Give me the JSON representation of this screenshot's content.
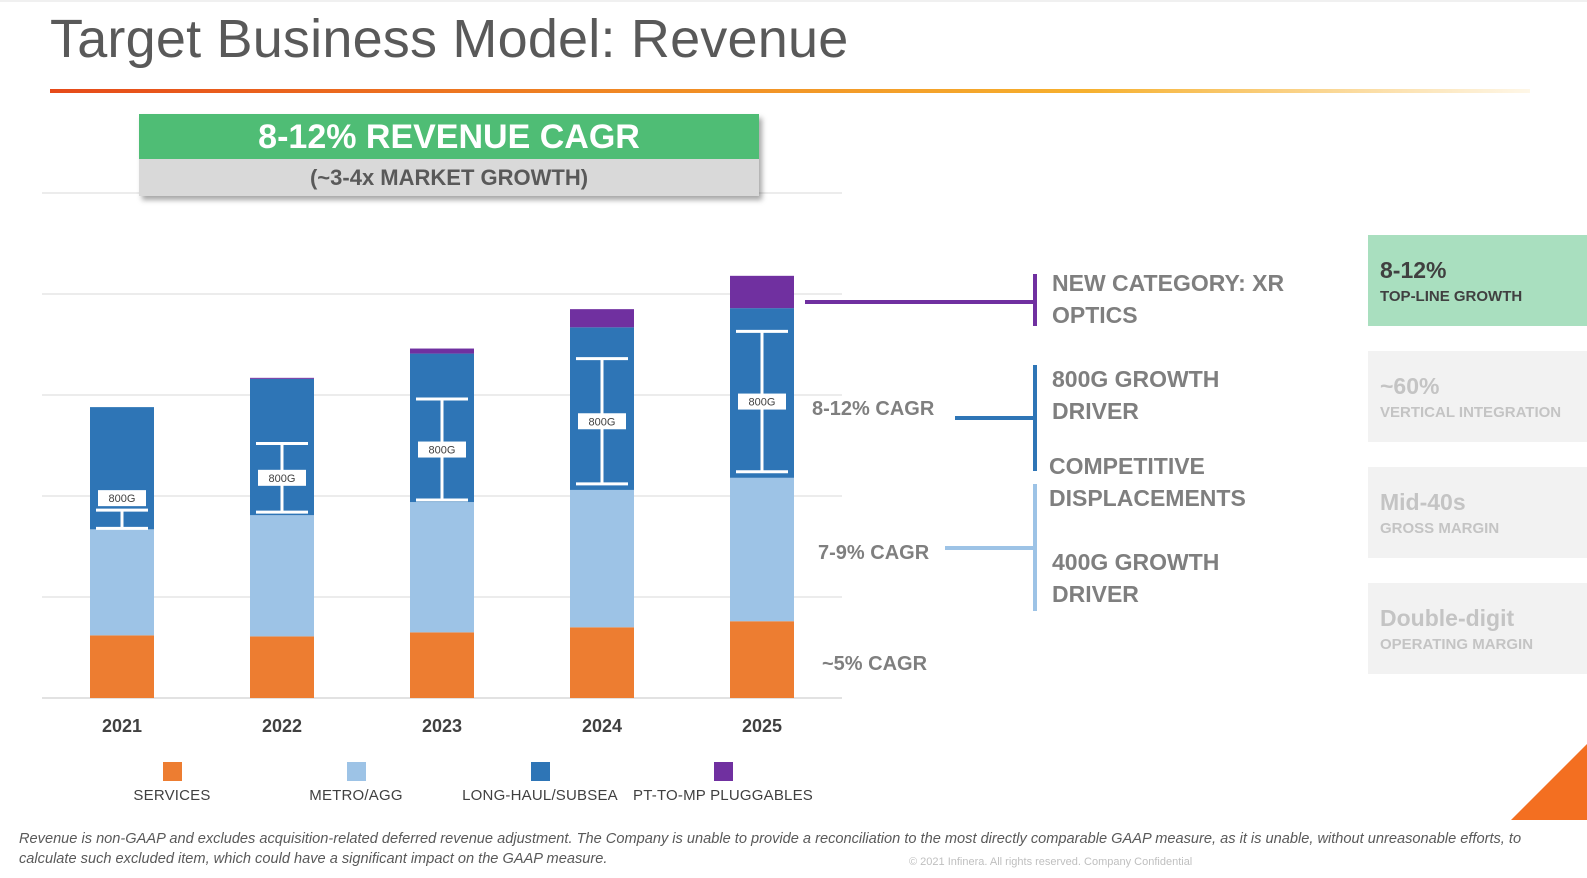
{
  "title": "Target Business Model: Revenue",
  "headline": {
    "cagr": "8-12% REVENUE CAGR",
    "market": "(~3-4x MARKET GROWTH)"
  },
  "colors": {
    "services": "#ed7d31",
    "metro": "#9dc3e6",
    "longhaul": "#2e75b6",
    "pluggables": "#7030a0",
    "green": "#4fbd75",
    "greenCard": "#a9dfbf"
  },
  "chart_data": {
    "type": "bar",
    "stacked": true,
    "categories": [
      "2021",
      "2022",
      "2023",
      "2024",
      "2025"
    ],
    "series": [
      {
        "name": "SERVICES",
        "color": "#ed7d31",
        "values": [
          62,
          61,
          65,
          70,
          76
        ]
      },
      {
        "name": "METRO/AGG",
        "color": "#9dc3e6",
        "values": [
          105,
          120,
          129,
          136,
          142
        ]
      },
      {
        "name": "LONG-HAUL/SUBSEA",
        "color": "#2e75b6",
        "values": [
          121,
          135,
          147,
          161,
          168
        ]
      },
      {
        "name": "PT-TO-MP PLUGGABLES",
        "color": "#7030a0",
        "values": [
          0,
          1,
          5,
          18,
          32
        ]
      }
    ],
    "tags": [
      "800G",
      "800G",
      "800G",
      "800G",
      "800G"
    ],
    "tag_ranges": [
      [
        168,
        186
      ],
      [
        184,
        252
      ],
      [
        196,
        296
      ],
      [
        212,
        336
      ],
      [
        224,
        363
      ]
    ],
    "ylim": [
      0,
      500
    ],
    "gridlines": [
      0,
      100,
      200,
      300,
      400,
      500
    ],
    "grid": true,
    "legend": "bottom"
  },
  "cagrs": {
    "services": "~5% CAGR",
    "metro": "7-9% CAGR",
    "longhaul": "8-12% CAGR"
  },
  "drivers": {
    "xr": "NEW CATEGORY: XR\nOPTICS",
    "g800": "800G GROWTH\nDRIVER",
    "competitive": "COMPETITIVE\nDISPLACEMENTS",
    "g400": "400G GROWTH\nDRIVER"
  },
  "side_cards": [
    {
      "value": "8-12%",
      "sub": "TOP-LINE GROWTH",
      "active": true
    },
    {
      "value": "~60%",
      "sub": "VERTICAL INTEGRATION",
      "active": false
    },
    {
      "value": "Mid-40s",
      "sub": "GROSS MARGIN",
      "active": false
    },
    {
      "value": "Double-digit",
      "sub": "OPERATING MARGIN",
      "active": false
    }
  ],
  "footnote": "Revenue is non-GAAP and excludes acquisition-related deferred revenue adjustment. The Company is unable to provide a reconciliation to the most directly comparable GAAP measure, as it is unable, without unreasonable efforts, to calculate such excluded item, which could have a significant impact on the GAAP measure.",
  "copyright": "© 2021 Infinera. All rights reserved. Company Confidential"
}
